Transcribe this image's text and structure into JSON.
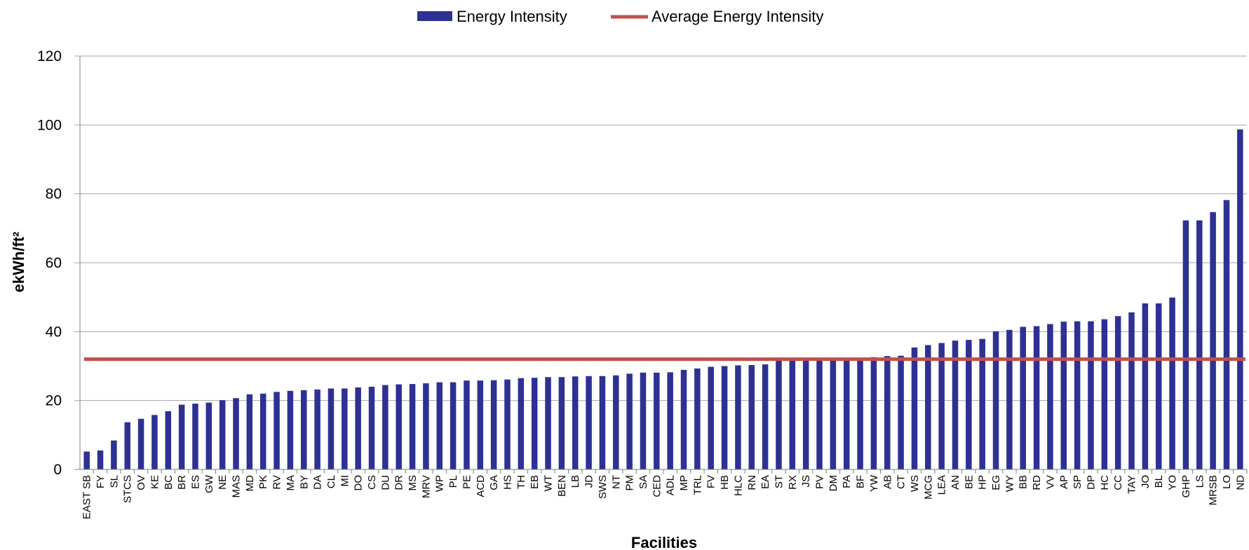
{
  "chart_data": {
    "type": "bar",
    "xlabel": "Facilities",
    "ylabel": "ekWh/ft²",
    "ylim": [
      0,
      120
    ],
    "yticks": [
      0,
      20,
      40,
      60,
      80,
      100,
      120
    ],
    "grid": true,
    "legend_position": "top-center",
    "legend": [
      "Energy Intensity",
      "Average Energy Intensity"
    ],
    "colors": {
      "bar": "#2E3192",
      "average": "#C0504D",
      "grid": "#A6A6A6",
      "axis": "#808080"
    },
    "categories": [
      "EAST SB",
      "FY",
      "SL",
      "STCS",
      "OV",
      "KE",
      "BC",
      "BR",
      "ES",
      "GW",
      "NE",
      "MAS",
      "MD",
      "PK",
      "RV",
      "MA",
      "BY",
      "DA",
      "CL",
      "MI",
      "DO",
      "CS",
      "DU",
      "DR",
      "MS",
      "MRV",
      "WP",
      "PL",
      "PE",
      "ACD",
      "GA",
      "HS",
      "TH",
      "EB",
      "WT",
      "BEN",
      "LB",
      "JD",
      "SWS",
      "NT",
      "PM",
      "SA",
      "CED",
      "ADL",
      "MP",
      "TRL",
      "FV",
      "HB",
      "HLC",
      "RN",
      "EA",
      "ST",
      "RX",
      "JS",
      "PV",
      "DM",
      "PA",
      "BF",
      "YW",
      "AB",
      "CT",
      "WS",
      "MCG",
      "LEA",
      "AN",
      "BE",
      "HP",
      "EG",
      "WY",
      "BB",
      "RD",
      "VV",
      "AP",
      "SP",
      "DP",
      "HC",
      "CC",
      "TAY",
      "JO",
      "BL",
      "YO",
      "GHP",
      "LS",
      "MRSB",
      "LO",
      "ND"
    ],
    "series": [
      {
        "name": "Energy Intensity",
        "type": "bar",
        "values": [
          5.2,
          5.5,
          8.4,
          13.7,
          14.7,
          15.8,
          16.9,
          18.8,
          19.1,
          19.4,
          20.1,
          20.7,
          21.8,
          22.0,
          22.5,
          22.8,
          23.0,
          23.2,
          23.5,
          23.5,
          23.8,
          24.0,
          24.5,
          24.7,
          24.8,
          25.0,
          25.3,
          25.3,
          25.8,
          25.8,
          25.9,
          26.1,
          26.5,
          26.6,
          26.8,
          26.8,
          27.0,
          27.1,
          27.1,
          27.3,
          27.8,
          28.1,
          28.1,
          28.2,
          28.9,
          29.3,
          29.8,
          30.0,
          30.2,
          30.3,
          30.5,
          31.7,
          31.9,
          32.0,
          32.0,
          32.1,
          32.2,
          32.3,
          32.6,
          32.9,
          33.0,
          35.4,
          36.1,
          36.7,
          37.4,
          37.6,
          37.9,
          40.1,
          40.5,
          41.4,
          41.6,
          42.2,
          42.9,
          43.0,
          43.0,
          43.6,
          44.5,
          45.6,
          48.2,
          48.2,
          49.9,
          72.3,
          72.3,
          74.7,
          78.2,
          98.7
        ]
      },
      {
        "name": "Average Energy Intensity",
        "type": "line",
        "value": 32.0
      }
    ]
  }
}
